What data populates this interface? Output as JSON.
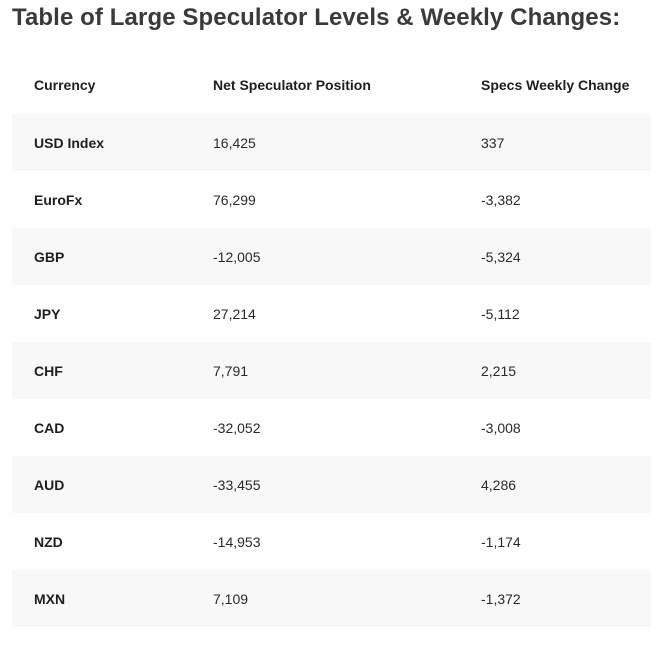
{
  "title": "Table of Large Speculator Levels & Weekly Changes:",
  "table": {
    "headers": [
      "Currency",
      "Net Speculator Position",
      "Specs Weekly Change"
    ],
    "rows": [
      {
        "currency": "USD Index",
        "net_position": "16,425",
        "weekly_change": "337"
      },
      {
        "currency": "EuroFx",
        "net_position": "76,299",
        "weekly_change": "-3,382"
      },
      {
        "currency": "GBP",
        "net_position": "-12,005",
        "weekly_change": "-5,324"
      },
      {
        "currency": "JPY",
        "net_position": "27,214",
        "weekly_change": "-5,112"
      },
      {
        "currency": "CHF",
        "net_position": "7,791",
        "weekly_change": "2,215"
      },
      {
        "currency": "CAD",
        "net_position": "-32,052",
        "weekly_change": "-3,008"
      },
      {
        "currency": "AUD",
        "net_position": "-33,455",
        "weekly_change": "4,286"
      },
      {
        "currency": "NZD",
        "net_position": "-14,953",
        "weekly_change": "-1,174"
      },
      {
        "currency": "MXN",
        "net_position": "7,109",
        "weekly_change": "-1,372"
      }
    ]
  }
}
